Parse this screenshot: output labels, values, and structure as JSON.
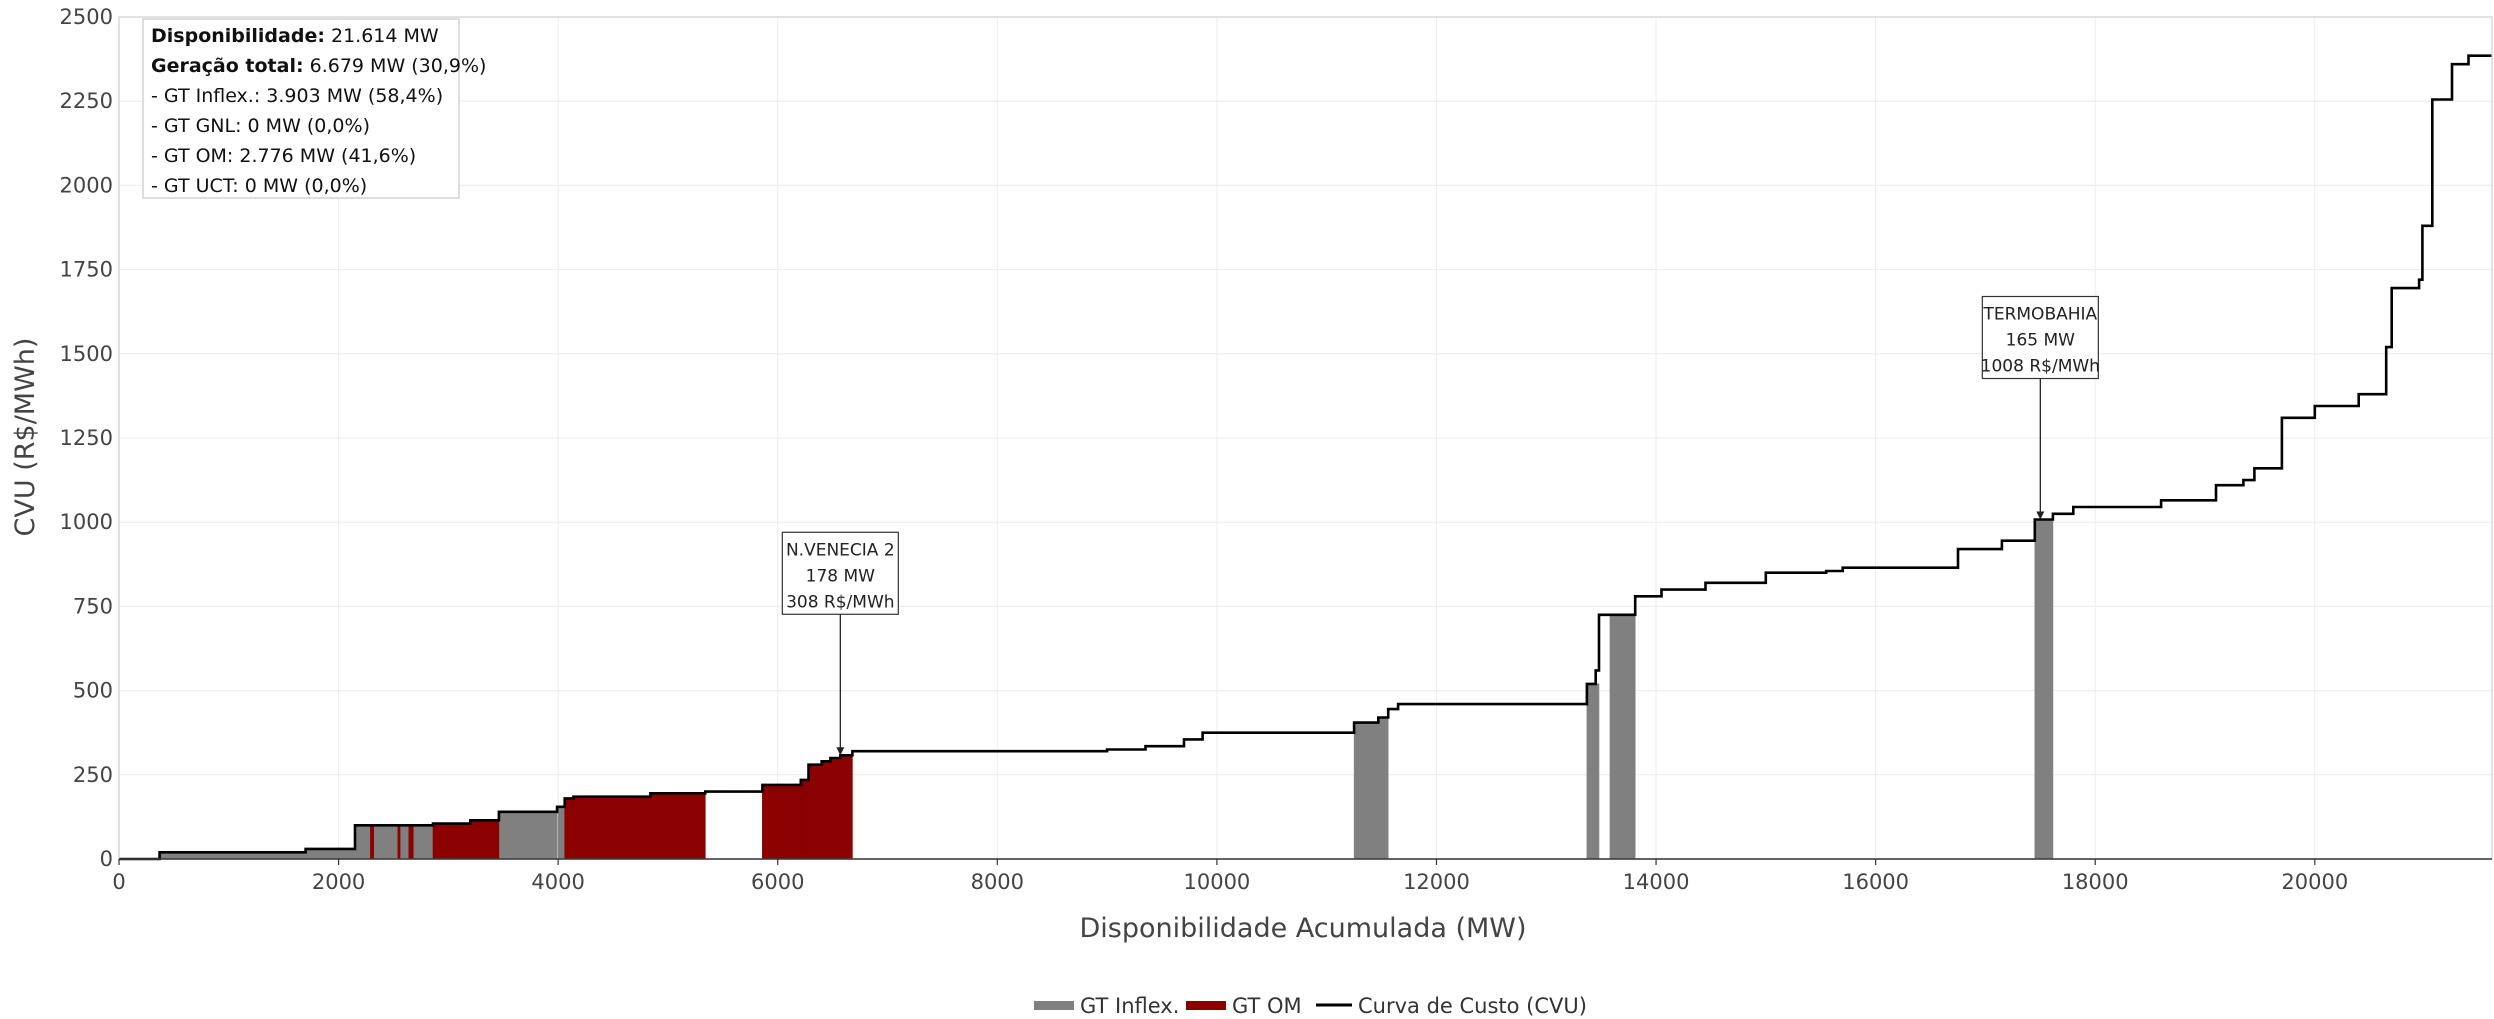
{
  "chart_data": {
    "type": "bar",
    "xlabel": "Disponibilidade Acumulada (MW)",
    "ylabel": "CVU (R$/MWh)",
    "xlim": [
      0,
      21614
    ],
    "ylim": [
      0,
      2500
    ],
    "x_ticks": [
      "0",
      "2000",
      "4000",
      "6000",
      "8000",
      "10000",
      "12000",
      "14000",
      "16000",
      "18000",
      "20000"
    ],
    "y_ticks": [
      "0",
      "250",
      "500",
      "750",
      "1000",
      "1250",
      "1500",
      "1750",
      "2000",
      "2250",
      "2500"
    ],
    "grid": true,
    "legend_position": "bottom-center",
    "colors": {
      "inflex": "#808080",
      "om": "#8b0000",
      "curve": "#000000"
    },
    "info_box": {
      "lines": [
        {
          "label": "Disponibilidade:",
          "value": " 21.614 MW"
        },
        {
          "label": "Geração total:",
          "value": " 6.679 MW (30,9%)"
        },
        {
          "label": "",
          "value": " - GT Inflex.: 3.903 MW (58,4%)"
        },
        {
          "label": "",
          "value": " - GT GNL: 0 MW (0,0%)"
        },
        {
          "label": "",
          "value": " - GT OM: 2.776 MW (41,6%)"
        },
        {
          "label": "",
          "value": " - GT UCT: 0 MW (0,0%)"
        }
      ]
    },
    "annotations": [
      {
        "x": 6570,
        "y": 308,
        "lines": [
          "N.VENECIA 2",
          "178 MW",
          "308 R$/MWh"
        ]
      },
      {
        "x": 17500,
        "y": 1008,
        "lines": [
          "TERMOBAHIA",
          "165 MW",
          "1008 R$/MWh"
        ]
      }
    ],
    "series": [
      {
        "name": "GT Inflex.",
        "bars": [
          [
            370,
            1700,
            20
          ],
          [
            1700,
            2150,
            30
          ],
          [
            2150,
            2290,
            100
          ],
          [
            2320,
            2540,
            100
          ],
          [
            2560,
            2640,
            100
          ],
          [
            2680,
            2860,
            100
          ],
          [
            3460,
            3990,
            140
          ],
          [
            4000,
            4060,
            155
          ],
          [
            11250,
            11470,
            405
          ],
          [
            11470,
            11560,
            420
          ],
          [
            13370,
            13480,
            520
          ],
          [
            13580,
            13810,
            725
          ],
          [
            17450,
            17615,
            1008
          ]
        ]
      },
      {
        "name": "GT OM",
        "bars": [
          [
            2290,
            2320,
            100
          ],
          [
            2540,
            2560,
            100
          ],
          [
            2640,
            2680,
            100
          ],
          [
            2860,
            3200,
            105
          ],
          [
            3200,
            3460,
            115
          ],
          [
            4060,
            4140,
            180
          ],
          [
            4140,
            4450,
            185
          ],
          [
            4450,
            4840,
            185
          ],
          [
            4840,
            5340,
            195
          ],
          [
            5860,
            6210,
            220
          ],
          [
            6210,
            6280,
            235
          ],
          [
            6280,
            6400,
            280
          ],
          [
            6400,
            6480,
            290
          ],
          [
            6480,
            6570,
            300
          ],
          [
            6570,
            6680,
            308
          ]
        ]
      },
      {
        "name": "Curva de Custo (CVU)",
        "points": [
          [
            0,
            0
          ],
          [
            370,
            0
          ],
          [
            370,
            20
          ],
          [
            1700,
            20
          ],
          [
            1700,
            30
          ],
          [
            2150,
            30
          ],
          [
            2150,
            100
          ],
          [
            2860,
            100
          ],
          [
            2860,
            105
          ],
          [
            3200,
            105
          ],
          [
            3200,
            115
          ],
          [
            3460,
            115
          ],
          [
            3460,
            140
          ],
          [
            3990,
            140
          ],
          [
            3990,
            155
          ],
          [
            4060,
            155
          ],
          [
            4060,
            180
          ],
          [
            4140,
            180
          ],
          [
            4140,
            185
          ],
          [
            4840,
            185
          ],
          [
            4840,
            195
          ],
          [
            5340,
            195
          ],
          [
            5340,
            200
          ],
          [
            5860,
            200
          ],
          [
            5860,
            220
          ],
          [
            6210,
            220
          ],
          [
            6210,
            235
          ],
          [
            6280,
            235
          ],
          [
            6280,
            280
          ],
          [
            6400,
            280
          ],
          [
            6400,
            290
          ],
          [
            6480,
            290
          ],
          [
            6480,
            300
          ],
          [
            6570,
            300
          ],
          [
            6570,
            308
          ],
          [
            6680,
            308
          ],
          [
            6680,
            320
          ],
          [
            9000,
            320
          ],
          [
            9000,
            325
          ],
          [
            9350,
            325
          ],
          [
            9350,
            335
          ],
          [
            9700,
            335
          ],
          [
            9700,
            355
          ],
          [
            9870,
            355
          ],
          [
            9870,
            375
          ],
          [
            11250,
            375
          ],
          [
            11250,
            405
          ],
          [
            11470,
            405
          ],
          [
            11470,
            420
          ],
          [
            11560,
            420
          ],
          [
            11560,
            445
          ],
          [
            11650,
            445
          ],
          [
            11650,
            460
          ],
          [
            13370,
            460
          ],
          [
            13370,
            520
          ],
          [
            13450,
            520
          ],
          [
            13450,
            560
          ],
          [
            13480,
            560
          ],
          [
            13480,
            725
          ],
          [
            13810,
            725
          ],
          [
            13810,
            780
          ],
          [
            14050,
            780
          ],
          [
            14050,
            800
          ],
          [
            14450,
            800
          ],
          [
            14450,
            820
          ],
          [
            15000,
            820
          ],
          [
            15000,
            850
          ],
          [
            15550,
            850
          ],
          [
            15550,
            855
          ],
          [
            15700,
            855
          ],
          [
            15700,
            865
          ],
          [
            16750,
            865
          ],
          [
            16750,
            920
          ],
          [
            17150,
            920
          ],
          [
            17150,
            945
          ],
          [
            17450,
            945
          ],
          [
            17450,
            1008
          ],
          [
            17615,
            1008
          ],
          [
            17615,
            1025
          ],
          [
            17800,
            1025
          ],
          [
            17800,
            1045
          ],
          [
            18600,
            1045
          ],
          [
            18600,
            1065
          ],
          [
            19100,
            1065
          ],
          [
            19100,
            1110
          ],
          [
            19350,
            1110
          ],
          [
            19350,
            1125
          ],
          [
            19450,
            1125
          ],
          [
            19450,
            1160
          ],
          [
            19700,
            1160
          ],
          [
            19700,
            1310
          ],
          [
            20000,
            1310
          ],
          [
            20000,
            1345
          ],
          [
            20400,
            1345
          ],
          [
            20400,
            1380
          ],
          [
            20650,
            1380
          ],
          [
            20650,
            1520
          ],
          [
            20700,
            1520
          ],
          [
            20700,
            1695
          ],
          [
            20950,
            1695
          ],
          [
            20950,
            1720
          ],
          [
            20980,
            1720
          ],
          [
            20980,
            1880
          ],
          [
            21070,
            1880
          ],
          [
            21070,
            2255
          ],
          [
            21250,
            2255
          ],
          [
            21250,
            2360
          ],
          [
            21400,
            2360
          ],
          [
            21400,
            2385
          ],
          [
            21614,
            2385
          ]
        ]
      }
    ]
  }
}
